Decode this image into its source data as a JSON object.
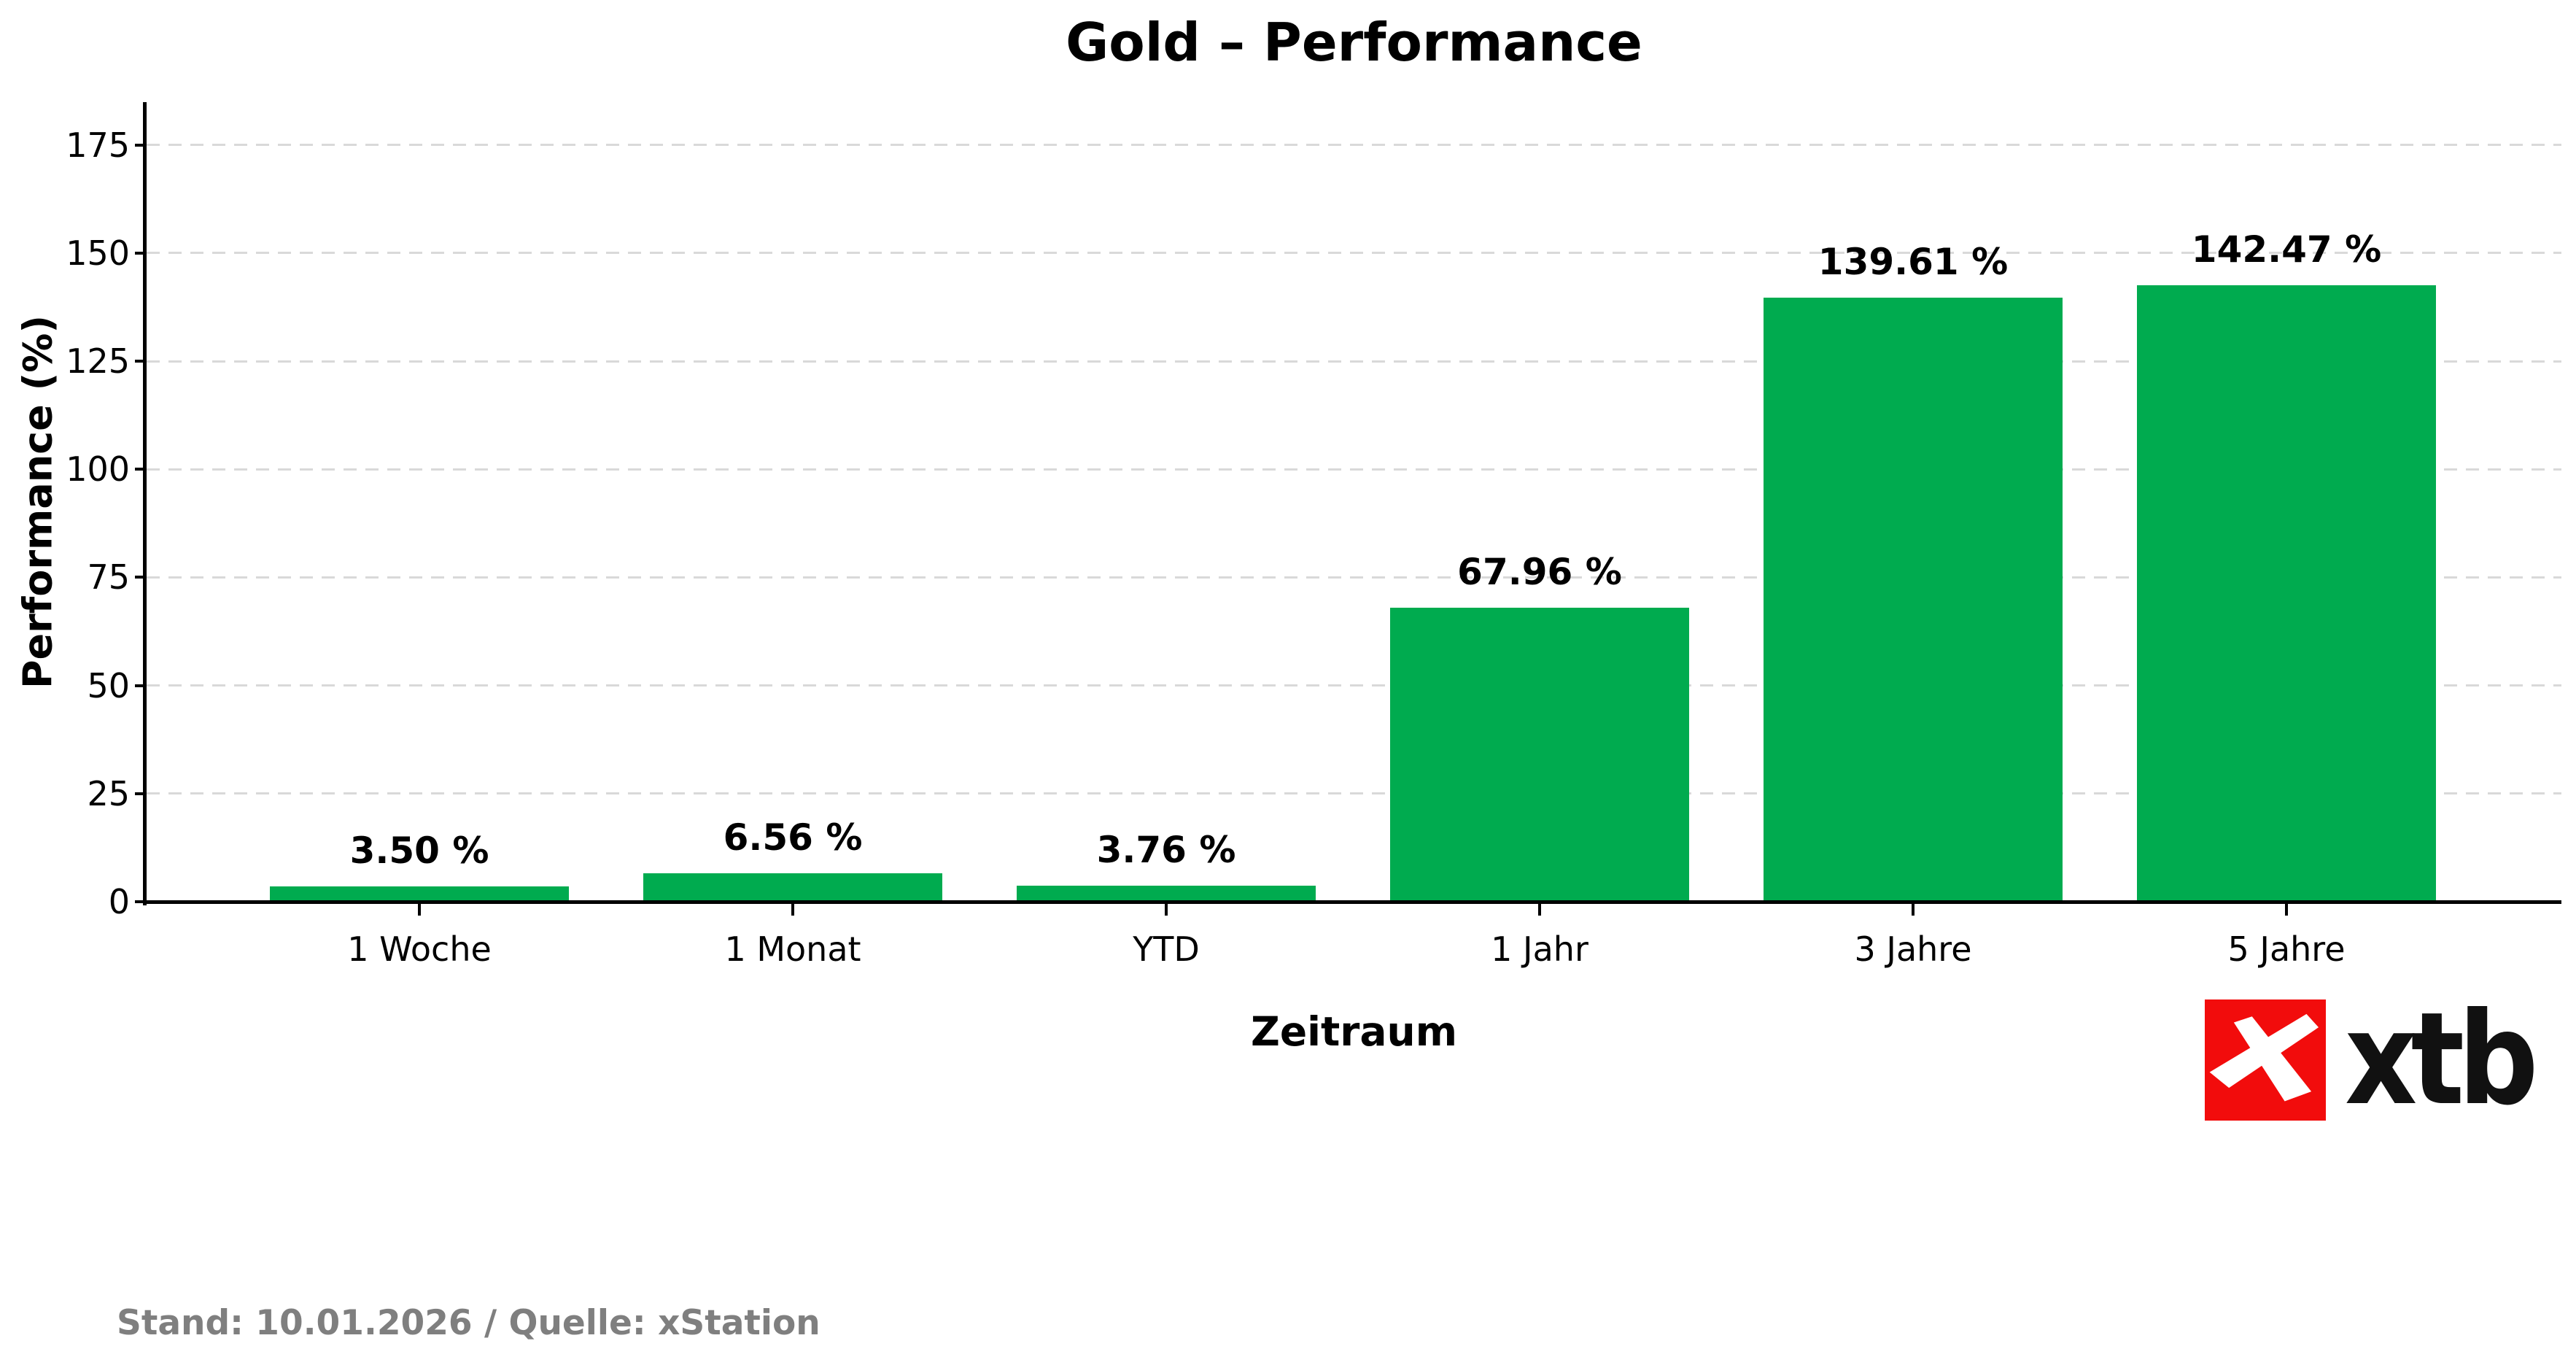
{
  "chart_data": {
    "type": "bar",
    "title": "Gold – Performance",
    "xlabel": "Zeitraum",
    "ylabel": "Performance (%)",
    "categories": [
      "1 Woche",
      "1 Monat",
      "YTD",
      "1 Jahr",
      "3 Jahre",
      "5 Jahre"
    ],
    "values": [
      3.5,
      6.56,
      3.76,
      67.96,
      139.61,
      142.47
    ],
    "bar_labels": [
      "3.50 %",
      "6.56 %",
      "3.76 %",
      "67.96 %",
      "139.61 %",
      "142.47 %"
    ],
    "yticks": [
      0,
      25,
      50,
      75,
      100,
      125,
      150,
      175
    ],
    "ylim": [
      0,
      185
    ],
    "grid": "horizontal-dashed",
    "legend": "none",
    "bar_color": "#00AB4F"
  },
  "colors": {
    "bar": "#00AB4F",
    "grid": "#D9D9D9",
    "axis": "#000000",
    "footer_text": "#7F7F7F",
    "logo_red": "#F20C0C",
    "logo_text": "#111111"
  },
  "footer": {
    "source_note": "Stand: 10.01.2026 / Quelle: xStation"
  },
  "branding": {
    "logo_text": "xtb"
  }
}
